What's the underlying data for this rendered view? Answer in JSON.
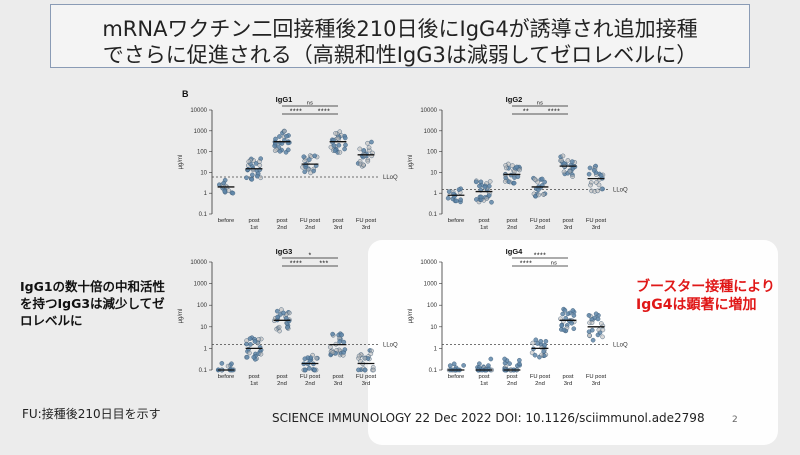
{
  "slide": {
    "title_line1": "mRNAワクチン二回接種後210日後にIgG4が誘導され追加接種",
    "title_line2": "でさらに促進される（高親和性IgG3は減弱してゼロレベルに）",
    "panel_letter": "B",
    "note_left": "IgG1の数十倍の中和活性を持つIgG3は減少してゼロレベルに",
    "note_right": "ブースター接種によりIgG4は顕著に増加",
    "footnote": "FU:接種後210日目を示す",
    "citation": "SCIENCE IMMUNOLOGY 22 Dec 2022 DOI: 10.1126/sciimmunol.ade2798",
    "page_number": "2"
  },
  "colors": {
    "dot_blue": "#5f86a8",
    "dot_gray": "#b8b8b8",
    "accent_red": "#e01818",
    "title_border": "#8a9bb5"
  },
  "chart_data": [
    {
      "type": "scatter",
      "title": "IgG1",
      "ylabel": "μg/ml",
      "yscale": "log",
      "ylim": [
        0.1,
        10000
      ],
      "yticks": [
        "0.1",
        "1",
        "10",
        "100",
        "1000",
        "10000"
      ],
      "categories": [
        "before",
        "post 1st",
        "post 2nd",
        "FU post 2nd",
        "post 3rd",
        "FU post 3rd"
      ],
      "medians": [
        2,
        15,
        300,
        25,
        300,
        70
      ],
      "lloq": {
        "label": "LLoQ",
        "value": 6
      },
      "significance": [
        {
          "label": "ns",
          "from": 2,
          "to": 4,
          "level": 0
        },
        {
          "label": "****",
          "from": 2,
          "to": 3,
          "level": 1
        },
        {
          "label": "****",
          "from": 3,
          "to": 4,
          "level": 1
        }
      ]
    },
    {
      "type": "scatter",
      "title": "IgG2",
      "ylabel": "μg/ml",
      "yscale": "log",
      "ylim": [
        0.1,
        10000
      ],
      "yticks": [
        "0.1",
        "1",
        "10",
        "100",
        "1000",
        "10000"
      ],
      "categories": [
        "before",
        "post 1st",
        "post 2nd",
        "FU post 2nd",
        "post 3rd",
        "FU post 3rd"
      ],
      "medians": [
        0.8,
        1.2,
        8,
        2,
        20,
        5
      ],
      "lloq": {
        "label": "LLoQ",
        "value": 1.5
      },
      "significance": [
        {
          "label": "ns",
          "from": 2,
          "to": 4,
          "level": 0
        },
        {
          "label": "**",
          "from": 2,
          "to": 3,
          "level": 1
        },
        {
          "label": "****",
          "from": 3,
          "to": 4,
          "level": 1
        }
      ]
    },
    {
      "type": "scatter",
      "title": "IgG3",
      "ylabel": "μg/ml",
      "yscale": "log",
      "ylim": [
        0.1,
        10000
      ],
      "yticks": [
        "0.1",
        "1",
        "10",
        "100",
        "1000",
        "10000"
      ],
      "categories": [
        "before",
        "post 1st",
        "post 2nd",
        "FU post 2nd",
        "post 3rd",
        "FU post 3rd"
      ],
      "medians": [
        0.1,
        1,
        20,
        0.2,
        1.5,
        0.2
      ],
      "lloq": {
        "label": "LLoQ",
        "value": 1.5
      },
      "significance": [
        {
          "label": "*",
          "from": 2,
          "to": 4,
          "level": 0
        },
        {
          "label": "****",
          "from": 2,
          "to": 3,
          "level": 1
        },
        {
          "label": "***",
          "from": 3,
          "to": 4,
          "level": 1
        }
      ]
    },
    {
      "type": "scatter",
      "title": "IgG4",
      "ylabel": "μg/ml",
      "yscale": "log",
      "ylim": [
        0.1,
        10000
      ],
      "yticks": [
        "0.1",
        "1",
        "10",
        "100",
        "1000",
        "10000"
      ],
      "categories": [
        "before",
        "post 1st",
        "post 2nd",
        "FU post 2nd",
        "post 3rd",
        "FU post 3rd"
      ],
      "medians": [
        0.1,
        0.1,
        0.1,
        1,
        20,
        10
      ],
      "lloq": {
        "label": "LLoQ",
        "value": 1.5
      },
      "significance": [
        {
          "label": "****",
          "from": 2,
          "to": 4,
          "level": 0
        },
        {
          "label": "****",
          "from": 2,
          "to": 3,
          "level": 1
        },
        {
          "label": "ns",
          "from": 3,
          "to": 4,
          "level": 1
        }
      ]
    }
  ]
}
